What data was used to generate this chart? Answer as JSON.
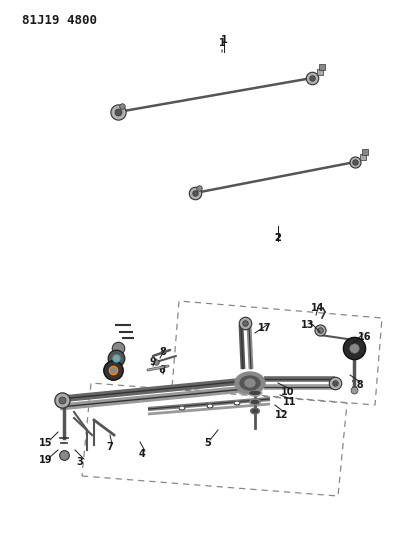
{
  "title_text": "81J19 4800",
  "bg_color": "#ffffff",
  "lc": "#1a1a1a",
  "fs": 7.0,
  "title_fs": 9
}
